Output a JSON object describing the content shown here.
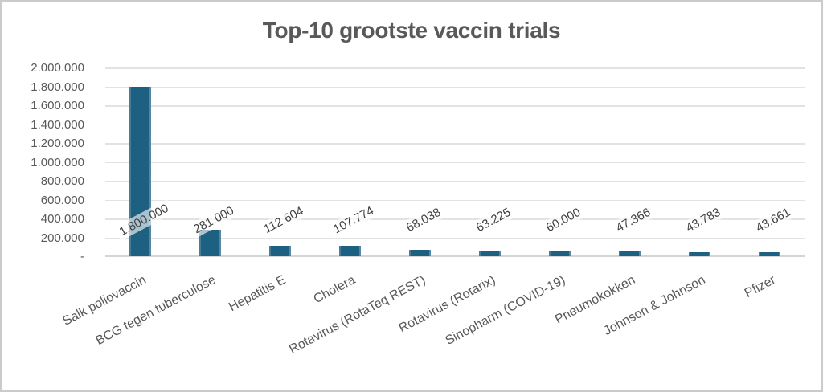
{
  "window": {
    "background": "#FFFFFF",
    "border_color": "#CBCBCB"
  },
  "chart_data": {
    "type": "bar",
    "title": "Top-10 grootste vaccin trials",
    "categories": [
      "Salk poliovaccin",
      "BCG tegen tuberculose",
      "Hepatitis E",
      "Cholera",
      "Rotavirus (RotaTeq REST)",
      "Rotavirus (Rotarix)",
      "Sinopharm (COVID-19)",
      "Pneumokokken",
      "Johnson & Johnson",
      "Pfizer"
    ],
    "values": [
      1800000,
      281000,
      112604,
      107774,
      68038,
      63225,
      60000,
      47366,
      43783,
      43661
    ],
    "value_labels": [
      "1.800.000",
      "281.000",
      "112.604",
      "107.774",
      "68.038",
      "63.225",
      "60.000",
      "47.366",
      "43.783",
      "43.661"
    ],
    "y_tick_labels": [
      "2.000.000",
      "1.800.000",
      "1.600.000",
      "1.400.000",
      "1.200.000",
      "1.000.000",
      "800.000",
      "600.000",
      "400.000",
      "200.000",
      "-"
    ],
    "ylim": [
      0,
      2000000
    ],
    "xlabel": "",
    "ylabel": "",
    "grid": true,
    "legend": "none",
    "bar_color": "#1D6081",
    "value_label_color": "#3F3F3F",
    "axis_text_color": "#595959",
    "gridline_color": "#E2E2E2",
    "title_color": "#595959",
    "category_label_angle_deg": -28,
    "value_label_angle_deg": -28
  }
}
